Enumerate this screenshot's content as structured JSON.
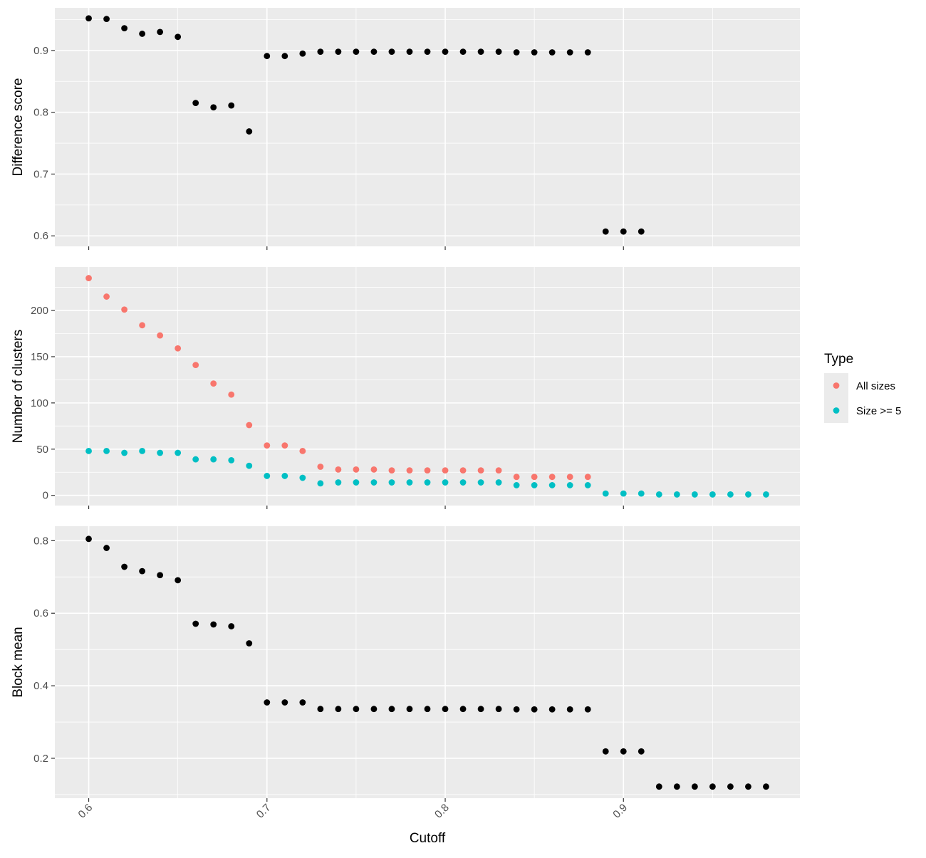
{
  "chart_data": {
    "type": "scatter",
    "xlabel": "Cutoff",
    "x_ticks": [
      "0.6",
      "0.7",
      "0.8",
      "0.9"
    ],
    "xlim": [
      0.581,
      0.999
    ],
    "legend": {
      "title": "Type",
      "position": "right",
      "entries": [
        {
          "label": "All sizes",
          "color": "#F8766D"
        },
        {
          "label": "Size >= 5",
          "color": "#00BFC4"
        }
      ]
    },
    "panels": [
      {
        "id": "difference-score",
        "ylabel": "Difference score",
        "ylim": [
          0.583,
          0.969
        ],
        "y_ticks": [
          "0.6",
          "0.7",
          "0.8",
          "0.9"
        ],
        "series": [
          {
            "color": "#000000",
            "x": [
              0.6,
              0.61,
              0.62,
              0.63,
              0.64,
              0.65,
              0.66,
              0.67,
              0.68,
              0.69,
              0.7,
              0.71,
              0.72,
              0.73,
              0.74,
              0.75,
              0.76,
              0.77,
              0.78,
              0.79,
              0.8,
              0.81,
              0.82,
              0.83,
              0.84,
              0.85,
              0.86,
              0.87,
              0.88,
              0.89,
              0.9,
              0.91
            ],
            "y": [
              0.952,
              0.951,
              0.936,
              0.927,
              0.93,
              0.922,
              0.815,
              0.808,
              0.811,
              0.769,
              0.891,
              0.891,
              0.895,
              0.898,
              0.898,
              0.898,
              0.898,
              0.898,
              0.898,
              0.898,
              0.898,
              0.898,
              0.898,
              0.898,
              0.897,
              0.897,
              0.897,
              0.897,
              0.897,
              0.607,
              0.607,
              0.607
            ]
          }
        ]
      },
      {
        "id": "number-of-clusters",
        "ylabel": "Number of clusters",
        "ylim": [
          -11,
          247
        ],
        "y_ticks": [
          "0",
          "50",
          "100",
          "150",
          "200"
        ],
        "series": [
          {
            "name": "All sizes",
            "color": "#F8766D",
            "x": [
              0.6,
              0.61,
              0.62,
              0.63,
              0.64,
              0.65,
              0.66,
              0.67,
              0.68,
              0.69,
              0.7,
              0.71,
              0.72,
              0.73,
              0.74,
              0.75,
              0.76,
              0.77,
              0.78,
              0.79,
              0.8,
              0.81,
              0.82,
              0.83,
              0.84,
              0.85,
              0.86,
              0.87,
              0.88
            ],
            "y": [
              235,
              215,
              201,
              184,
              173,
              159,
              141,
              121,
              109,
              76,
              54,
              54,
              48,
              31,
              28,
              28,
              28,
              27,
              27,
              27,
              27,
              27,
              27,
              27,
              20,
              20,
              20,
              20,
              20
            ]
          },
          {
            "name": "Size >= 5",
            "color": "#00BFC4",
            "x": [
              0.6,
              0.61,
              0.62,
              0.63,
              0.64,
              0.65,
              0.66,
              0.67,
              0.68,
              0.69,
              0.7,
              0.71,
              0.72,
              0.73,
              0.74,
              0.75,
              0.76,
              0.77,
              0.78,
              0.79,
              0.8,
              0.81,
              0.82,
              0.83,
              0.84,
              0.85,
              0.86,
              0.87,
              0.88,
              0.89,
              0.9,
              0.91,
              0.92,
              0.93,
              0.94,
              0.95,
              0.96,
              0.97,
              0.98
            ],
            "y": [
              48,
              48,
              46,
              48,
              46,
              46,
              39,
              39,
              38,
              32,
              21,
              21,
              19,
              13,
              14,
              14,
              14,
              14,
              14,
              14,
              14,
              14,
              14,
              14,
              11,
              11,
              11,
              11,
              11,
              2,
              2,
              2,
              1,
              1,
              1,
              1,
              1,
              1,
              1
            ]
          }
        ]
      },
      {
        "id": "block-mean",
        "ylabel": "Block mean",
        "ylim": [
          0.09,
          0.84
        ],
        "y_ticks": [
          "0.2",
          "0.4",
          "0.6",
          "0.8"
        ],
        "series": [
          {
            "color": "#000000",
            "x": [
              0.6,
              0.61,
              0.62,
              0.63,
              0.64,
              0.65,
              0.66,
              0.67,
              0.68,
              0.69,
              0.7,
              0.71,
              0.72,
              0.73,
              0.74,
              0.75,
              0.76,
              0.77,
              0.78,
              0.79,
              0.8,
              0.81,
              0.82,
              0.83,
              0.84,
              0.85,
              0.86,
              0.87,
              0.88,
              0.89,
              0.9,
              0.91,
              0.92,
              0.93,
              0.94,
              0.95,
              0.96,
              0.97,
              0.98
            ],
            "y": [
              0.805,
              0.78,
              0.728,
              0.716,
              0.705,
              0.691,
              0.571,
              0.569,
              0.564,
              0.517,
              0.354,
              0.354,
              0.354,
              0.336,
              0.336,
              0.336,
              0.336,
              0.336,
              0.336,
              0.336,
              0.336,
              0.336,
              0.336,
              0.336,
              0.335,
              0.335,
              0.335,
              0.335,
              0.335,
              0.219,
              0.219,
              0.219,
              0.122,
              0.122,
              0.122,
              0.122,
              0.122,
              0.122,
              0.122
            ]
          }
        ]
      }
    ]
  }
}
